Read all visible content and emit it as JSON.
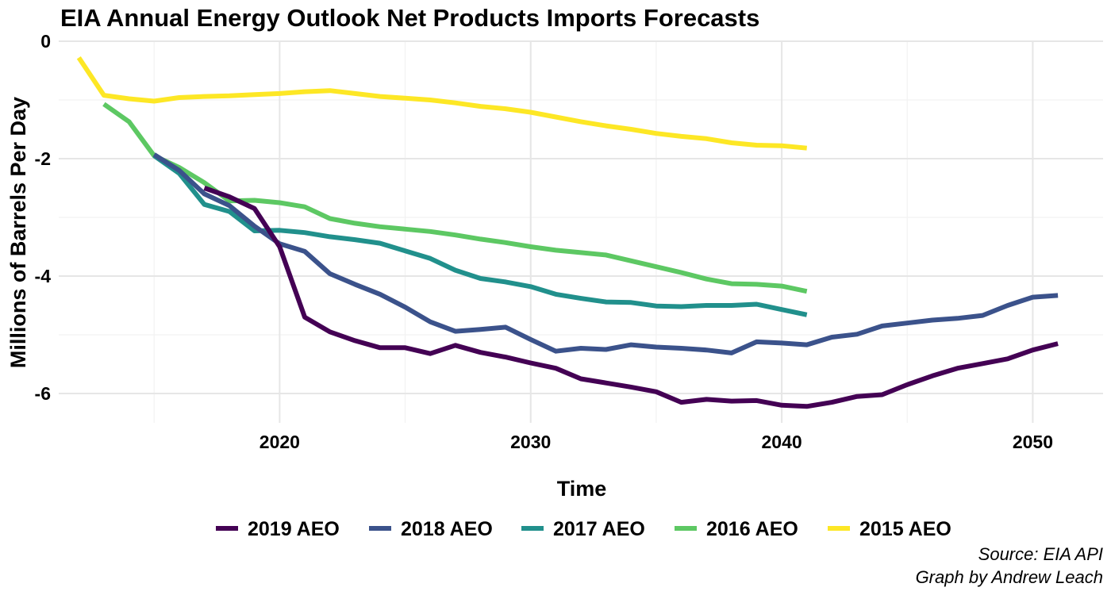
{
  "chart_data": {
    "type": "line",
    "title": "EIA Annual Energy Outlook Net Products Imports Forecasts",
    "xlabel": "Time",
    "ylabel": "Millions of Barrels Per Day",
    "xlim": [
      2011.2,
      2052.8
    ],
    "ylim": [
      -6.5,
      0
    ],
    "x_ticks": [
      2020,
      2030,
      2040,
      2050
    ],
    "y_ticks": [
      0,
      -2,
      -4,
      -6
    ],
    "x_tick_labels": [
      "2020",
      "2030",
      "2040",
      "2050"
    ],
    "y_tick_labels": [
      "0",
      "-2",
      "-4",
      "-6"
    ],
    "grid": true,
    "legend_position": "bottom",
    "caption_lines": [
      "Source: EIA API",
      "Graph by Andrew Leach"
    ],
    "series": [
      {
        "name": "2019 AEO",
        "color": "#440154",
        "x": [
          2017,
          2018,
          2019,
          2020,
          2021,
          2022,
          2023,
          2024,
          2025,
          2026,
          2027,
          2028,
          2029,
          2030,
          2031,
          2032,
          2033,
          2034,
          2035,
          2036,
          2037,
          2038,
          2039,
          2040,
          2041,
          2042,
          2043,
          2044,
          2045,
          2046,
          2047,
          2048,
          2049,
          2050,
          2051
        ],
        "y": [
          -2.5,
          -2.65,
          -2.85,
          -3.5,
          -4.7,
          -4.95,
          -5.1,
          -5.22,
          -5.22,
          -5.32,
          -5.18,
          -5.3,
          -5.38,
          -5.48,
          -5.57,
          -5.75,
          -5.82,
          -5.89,
          -5.97,
          -6.15,
          -6.1,
          -6.13,
          -6.12,
          -6.2,
          -6.22,
          -6.15,
          -6.05,
          -6.02,
          -5.85,
          -5.7,
          -5.57,
          -5.49,
          -5.41,
          -5.26,
          -5.15
        ]
      },
      {
        "name": "2018 AEO",
        "color": "#3b528b",
        "x": [
          2015,
          2016,
          2017,
          2018,
          2019,
          2020,
          2021,
          2022,
          2023,
          2024,
          2025,
          2026,
          2027,
          2028,
          2029,
          2030,
          2031,
          2032,
          2033,
          2034,
          2035,
          2036,
          2037,
          2038,
          2039,
          2040,
          2041,
          2042,
          2043,
          2044,
          2045,
          2046,
          2047,
          2048,
          2049,
          2050,
          2051
        ],
        "y": [
          -1.93,
          -2.2,
          -2.6,
          -2.8,
          -3.15,
          -3.45,
          -3.58,
          -3.96,
          -4.14,
          -4.31,
          -4.53,
          -4.78,
          -4.94,
          -4.91,
          -4.87,
          -5.08,
          -5.28,
          -5.23,
          -5.25,
          -5.17,
          -5.21,
          -5.23,
          -5.26,
          -5.31,
          -5.12,
          -5.14,
          -5.17,
          -5.04,
          -4.99,
          -4.85,
          -4.8,
          -4.75,
          -4.72,
          -4.67,
          -4.5,
          -4.36,
          -4.33
        ]
      },
      {
        "name": "2017 AEO",
        "color": "#21908c",
        "x": [
          2015,
          2016,
          2017,
          2018,
          2019,
          2020,
          2021,
          2022,
          2023,
          2024,
          2025,
          2026,
          2027,
          2028,
          2029,
          2030,
          2031,
          2032,
          2033,
          2034,
          2035,
          2036,
          2037,
          2038,
          2039,
          2040,
          2041
        ],
        "y": [
          -1.95,
          -2.25,
          -2.78,
          -2.9,
          -3.23,
          -3.22,
          -3.26,
          -3.33,
          -3.38,
          -3.44,
          -3.57,
          -3.7,
          -3.9,
          -4.04,
          -4.1,
          -4.18,
          -4.31,
          -4.38,
          -4.44,
          -4.45,
          -4.51,
          -4.52,
          -4.5,
          -4.5,
          -4.48,
          -4.57,
          -4.66
        ]
      },
      {
        "name": "2016 AEO",
        "color": "#5dc863",
        "x": [
          2013,
          2014,
          2015,
          2016,
          2017,
          2018,
          2019,
          2020,
          2021,
          2022,
          2023,
          2024,
          2025,
          2026,
          2027,
          2028,
          2029,
          2030,
          2031,
          2032,
          2033,
          2034,
          2035,
          2036,
          2037,
          2038,
          2039,
          2040,
          2041
        ],
        "y": [
          -1.07,
          -1.37,
          -1.95,
          -2.15,
          -2.41,
          -2.72,
          -2.71,
          -2.75,
          -2.82,
          -3.02,
          -3.1,
          -3.16,
          -3.2,
          -3.24,
          -3.3,
          -3.37,
          -3.43,
          -3.5,
          -3.56,
          -3.6,
          -3.64,
          -3.74,
          -3.84,
          -3.94,
          -4.05,
          -4.13,
          -4.14,
          -4.17,
          -4.26
        ]
      },
      {
        "name": "2015 AEO",
        "color": "#fde725",
        "x": [
          2012,
          2013,
          2014,
          2015,
          2016,
          2017,
          2018,
          2019,
          2020,
          2021,
          2022,
          2023,
          2024,
          2025,
          2026,
          2027,
          2028,
          2029,
          2030,
          2031,
          2032,
          2033,
          2034,
          2035,
          2036,
          2037,
          2038,
          2039,
          2040,
          2041
        ],
        "y": [
          -0.28,
          -0.92,
          -0.98,
          -1.02,
          -0.96,
          -0.94,
          -0.93,
          -0.91,
          -0.89,
          -0.86,
          -0.84,
          -0.89,
          -0.94,
          -0.97,
          -1.0,
          -1.05,
          -1.11,
          -1.15,
          -1.21,
          -1.29,
          -1.37,
          -1.44,
          -1.5,
          -1.57,
          -1.62,
          -1.66,
          -1.73,
          -1.77,
          -1.78,
          -1.82
        ]
      }
    ]
  }
}
